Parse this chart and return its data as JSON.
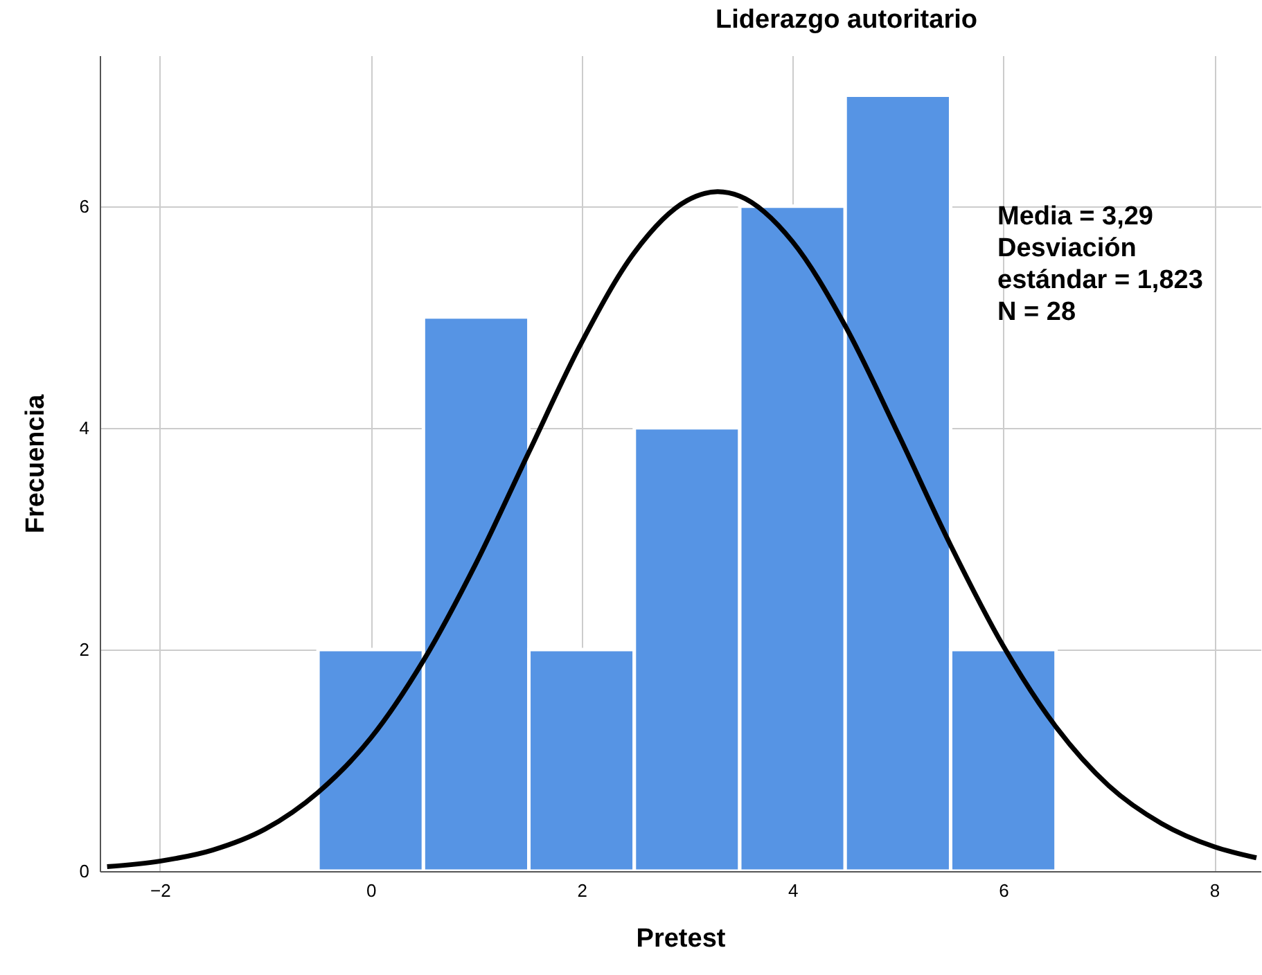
{
  "chart_data": {
    "type": "histogram",
    "title": "Liderazgo autoritario",
    "xlabel": "Pretest",
    "ylabel": "Frecuencia",
    "bins": [
      -0.5,
      0.5,
      1.5,
      2.5,
      3.5,
      4.5,
      5.5,
      6.5
    ],
    "values": [
      2,
      5,
      2,
      4,
      6,
      7,
      2
    ],
    "color": "#5694e4",
    "series": [
      {
        "type": "line",
        "color": "#000000",
        "x": [
          -2.5,
          -2,
          -1.5,
          -1,
          -0.5,
          0,
          0.5,
          1,
          1.5,
          2,
          2.5,
          3,
          3.29,
          3.5,
          4,
          4.5,
          5,
          5.5,
          6,
          6.5,
          7,
          7.5,
          8,
          8.4
        ],
        "values": [
          0.04,
          0.09,
          0.19,
          0.38,
          0.71,
          1.2,
          1.9,
          2.78,
          3.78,
          4.77,
          5.58,
          6.05,
          6.13,
          6.09,
          5.68,
          4.92,
          3.95,
          2.94,
          2.03,
          1.3,
          0.77,
          0.43,
          0.22,
          0.12
        ]
      }
    ],
    "xlim": [
      -2.57,
      8.44
    ],
    "xticks": [
      -2,
      0,
      2,
      4,
      6,
      8
    ],
    "ylim": [
      0,
      7.36
    ],
    "yticks": [
      0,
      2,
      4,
      6
    ],
    "grid": true,
    "annotations": [
      "Media = 3,29",
      "Desviación estándar = 1,823",
      "N = 28"
    ]
  }
}
